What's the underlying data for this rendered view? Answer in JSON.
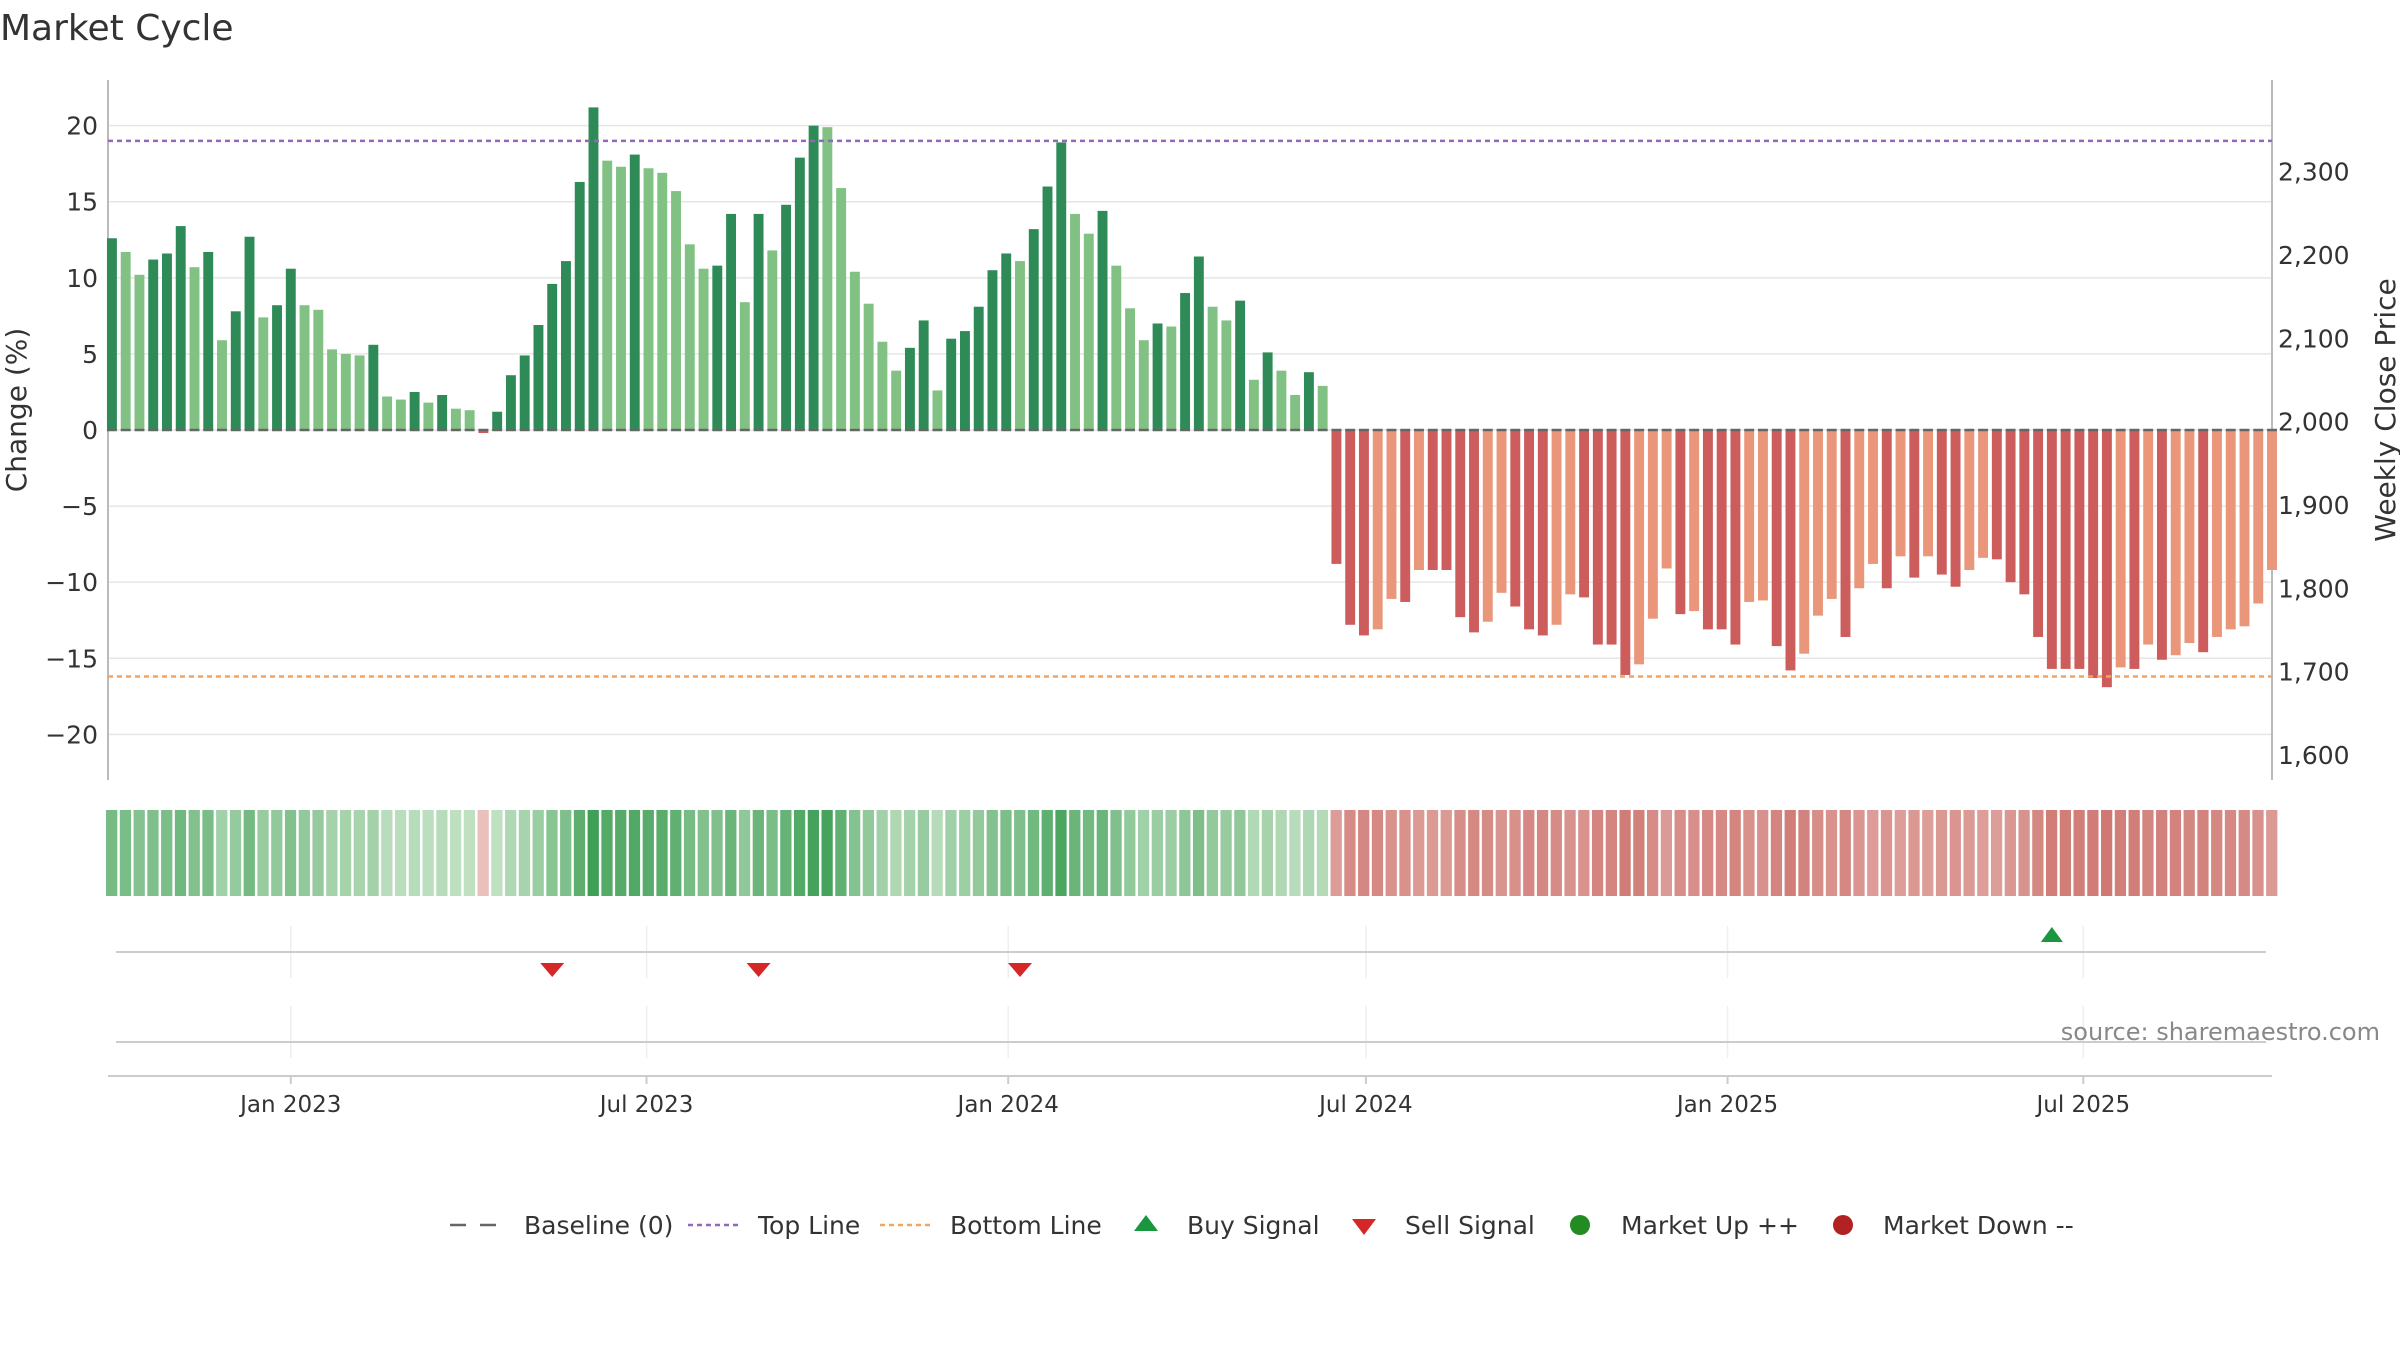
{
  "title": "Market Cycle",
  "source": "source: sharemaestro.com",
  "colors": {
    "up_strong": "#2e8b57",
    "up_light": "#82c184",
    "down_strong": "#cd5c5c",
    "down_light": "#e9967a",
    "top_line": "#9467bd",
    "bottom_line": "#f4a460",
    "baseline": "#666666",
    "buy": "#1a9641",
    "sell": "#d62728",
    "market_up": "#228b22",
    "market_down": "#b22222"
  },
  "chart_data": {
    "type": "bar",
    "xlabel": "",
    "ylabel": "Change (%)",
    "y2label": "Weekly Close Price",
    "ylim": [
      -23,
      23
    ],
    "y2lim": [
      1570,
      2410
    ],
    "yticks": [
      20,
      15,
      10,
      5,
      0,
      -5,
      -10,
      -15,
      -20
    ],
    "ytick_labels": [
      "20",
      "15",
      "10",
      "5",
      "0",
      "−5",
      "−10",
      "−15",
      "−20"
    ],
    "y2ticks": [
      2300,
      2200,
      2100,
      2000,
      1900,
      1800,
      1700,
      1600
    ],
    "y2tick_labels": [
      "2,300",
      "2,200",
      "2,100",
      "2,000",
      "1,900",
      "1,800",
      "1,700",
      "1,600"
    ],
    "x_start": "2022-09-30",
    "x_end": "2025-10-05",
    "xticks": [
      "2023-01-01",
      "2023-07-01",
      "2024-01-01",
      "2024-07-01",
      "2025-01-01",
      "2025-07-01"
    ],
    "xtick_labels": [
      "Jan 2023",
      "Jul 2023",
      "Jan 2024",
      "Jul 2024",
      "Jan 2025",
      "Jul 2025"
    ],
    "first_week": "2022-10-02",
    "top_line": 19,
    "bottom_line": -16.2,
    "values": [
      12.6,
      11.7,
      10.2,
      11.2,
      11.6,
      13.4,
      10.7,
      11.7,
      5.9,
      7.8,
      12.7,
      7.4,
      8.2,
      10.6,
      8.2,
      7.9,
      5.3,
      5.0,
      4.9,
      5.6,
      2.2,
      2.0,
      2.5,
      1.8,
      2.3,
      1.4,
      1.3,
      -0.2,
      1.2,
      3.6,
      4.9,
      6.9,
      9.6,
      11.1,
      16.3,
      21.2,
      17.7,
      17.3,
      18.1,
      17.2,
      16.9,
      15.7,
      12.2,
      10.6,
      10.8,
      14.2,
      8.4,
      14.2,
      11.8,
      14.8,
      17.9,
      20.0,
      19.9,
      15.9,
      10.4,
      8.3,
      5.8,
      3.9,
      5.4,
      7.2,
      2.6,
      6.0,
      6.5,
      8.1,
      10.5,
      11.6,
      11.1,
      13.2,
      16.0,
      18.9,
      14.2,
      12.9,
      14.4,
      10.8,
      8.0,
      5.9,
      7.0,
      6.8,
      9.0,
      11.4,
      8.1,
      7.2,
      8.5,
      3.3,
      5.1,
      3.9,
      2.3,
      3.8,
      2.9,
      -8.8,
      -12.8,
      -13.5,
      -13.1,
      -11.1,
      -11.3,
      -9.2,
      -9.2,
      -9.2,
      -12.3,
      -13.3,
      -12.6,
      -10.7,
      -11.6,
      -13.1,
      -13.5,
      -12.8,
      -10.8,
      -11.0,
      -14.1,
      -14.1,
      -16.1,
      -15.4,
      -12.4,
      -9.1,
      -12.1,
      -11.9,
      -13.1,
      -13.1,
      -14.1,
      -11.3,
      -11.2,
      -14.2,
      -15.8,
      -14.7,
      -12.2,
      -11.1,
      -13.6,
      -10.4,
      -8.8,
      -10.4,
      -8.3,
      -9.7,
      -8.3,
      -9.5,
      -10.3,
      -9.2,
      -8.4,
      -8.5,
      -10.0,
      -10.8,
      -13.6,
      -15.7,
      -15.7,
      -15.7,
      -16.3,
      -16.9,
      -15.6,
      -15.7,
      -14.1,
      -15.1,
      -14.8,
      -14.0,
      -14.6,
      -13.6,
      -13.1,
      -12.9,
      -11.4,
      -9.2
    ],
    "legend_position": "bottom",
    "legend": [
      "Baseline (0)",
      "Top Line",
      "Bottom Line",
      "Buy Signal",
      "Sell Signal",
      "Market Up ++",
      "Market Down --"
    ],
    "buy_signals": [
      "2025-06-15"
    ],
    "sell_signals": [
      "2023-05-14",
      "2023-08-27",
      "2024-01-07"
    ],
    "grid": true
  }
}
